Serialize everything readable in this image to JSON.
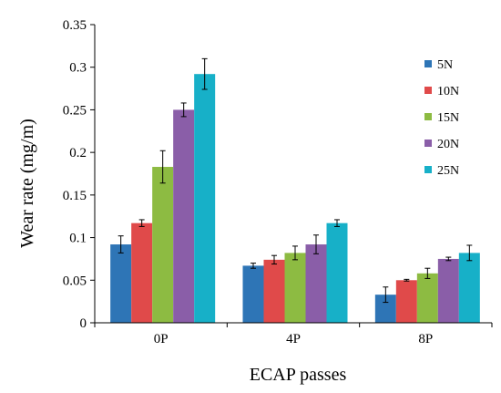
{
  "chart_data": {
    "type": "bar",
    "xlabel": "ECAP passes",
    "ylabel": "Wear rate (mg/m)",
    "categories": [
      "0P",
      "4P",
      "8P"
    ],
    "ylim": [
      0,
      0.35
    ],
    "yticks": [
      0,
      0.05,
      0.1,
      0.15,
      0.2,
      0.25,
      0.3,
      0.35
    ],
    "ytick_labels": [
      "0",
      "0.05",
      "0.1",
      "0.15",
      "0.2",
      "0.25",
      "0.3",
      "0.35"
    ],
    "grid": false,
    "legend_position": "top-right",
    "series": [
      {
        "name": "5N",
        "color": "#2e75b6",
        "values": [
          0.092,
          0.067,
          0.033
        ],
        "errors": [
          0.01,
          0.003,
          0.009
        ]
      },
      {
        "name": "10N",
        "color": "#e04a4a",
        "values": [
          0.117,
          0.074,
          0.05
        ],
        "errors": [
          0.004,
          0.005,
          0.001
        ]
      },
      {
        "name": "15N",
        "color": "#8dbb42",
        "values": [
          0.183,
          0.082,
          0.058
        ],
        "errors": [
          0.019,
          0.008,
          0.006
        ]
      },
      {
        "name": "20N",
        "color": "#8a5ea8",
        "values": [
          0.25,
          0.092,
          0.075
        ],
        "errors": [
          0.008,
          0.011,
          0.002
        ]
      },
      {
        "name": "25N",
        "color": "#17b0c8",
        "values": [
          0.292,
          0.117,
          0.082
        ],
        "errors": [
          0.018,
          0.004,
          0.009
        ]
      }
    ]
  }
}
